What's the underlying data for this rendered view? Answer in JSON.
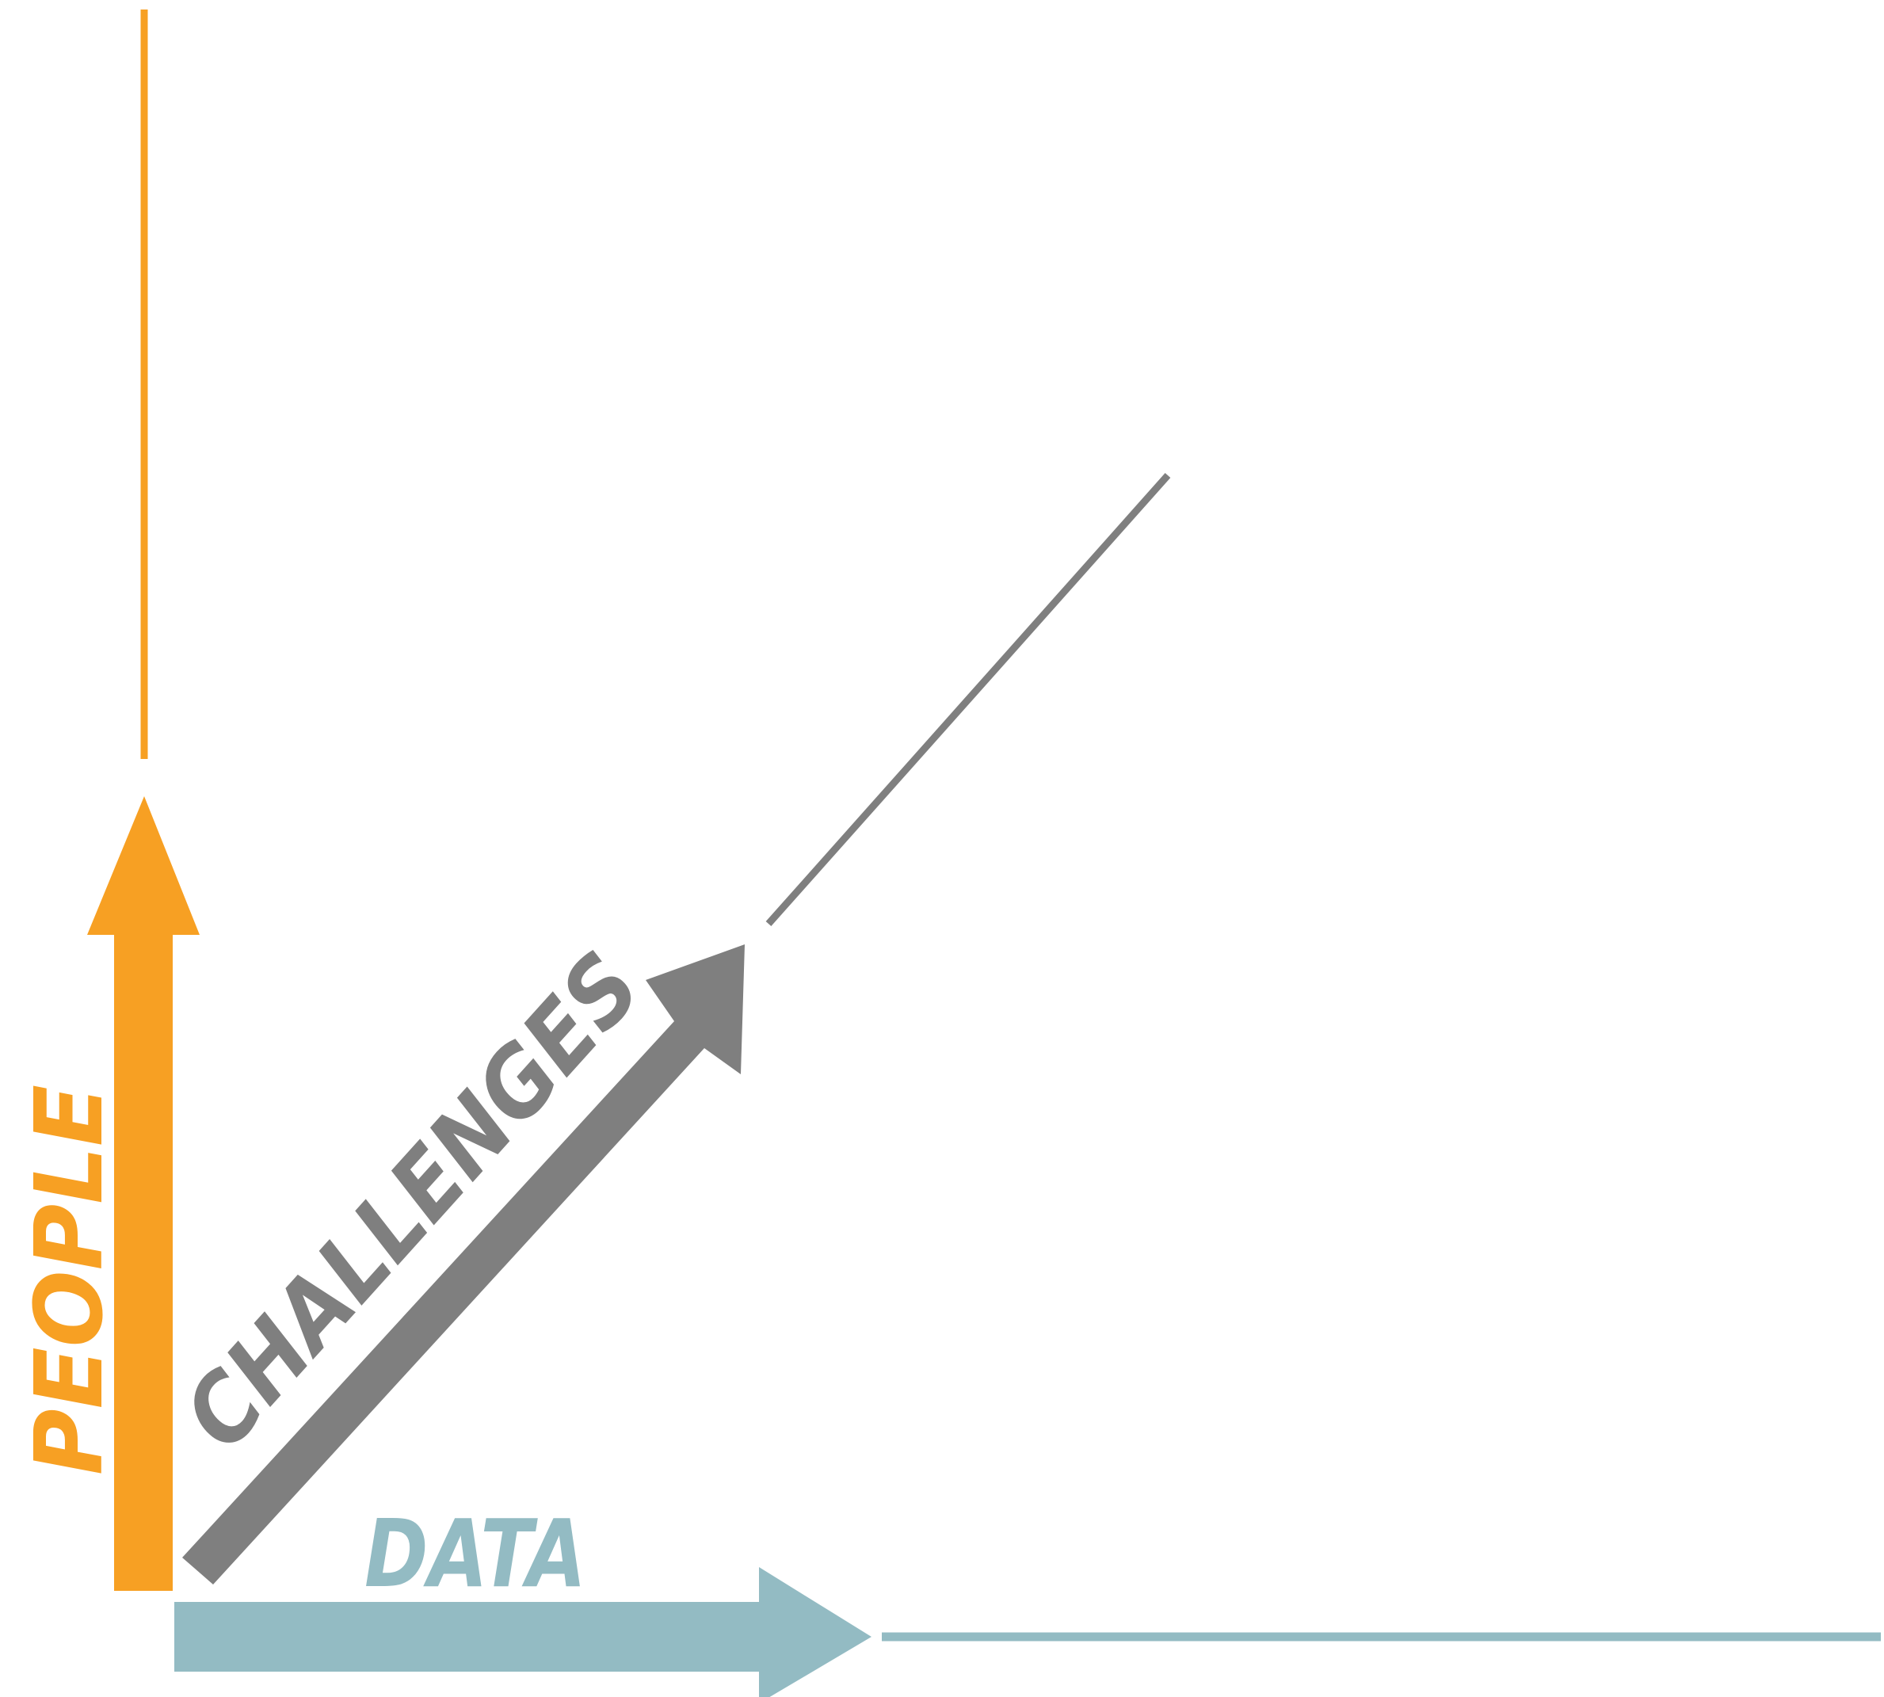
{
  "labels": {
    "people": "PEOPLE",
    "challenges": "CHALLENGES",
    "data": "DATA"
  },
  "colors": {
    "people": "#F7A023",
    "challenges": "#7F7F7F",
    "data": "#93BBC3",
    "background": "#FFFFFF"
  }
}
